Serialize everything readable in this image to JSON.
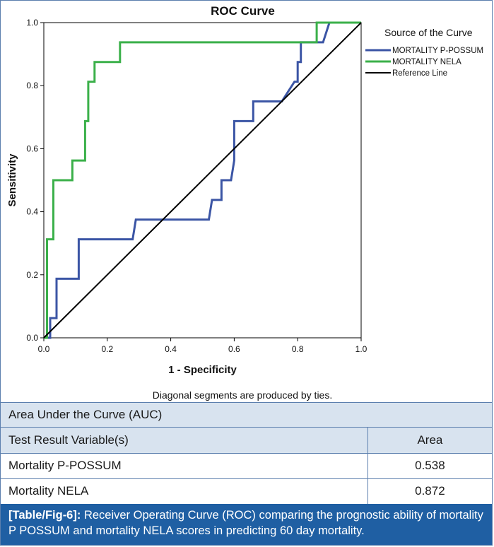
{
  "chart_data": {
    "type": "line",
    "title": "ROC Curve",
    "xlabel": "1 - Specificity",
    "ylabel": "Sensitivity",
    "xlim": [
      0,
      1
    ],
    "ylim": [
      0,
      1
    ],
    "xticks": [
      "0.0",
      "0.2",
      "0.4",
      "0.6",
      "0.8",
      "1.0"
    ],
    "yticks": [
      "0.0",
      "0.2",
      "0.4",
      "0.6",
      "0.8",
      "1.0"
    ],
    "grid": false,
    "legend_title": "Source of the Curve",
    "legend_position": "top-right outside plot",
    "footnote": "Diagonal segments are produced by ties.",
    "series": [
      {
        "name": "MORTALITY P-POSSUM",
        "color": "#3b55a5",
        "points": [
          [
            0,
            0
          ],
          [
            0.02,
            0
          ],
          [
            0.02,
            0.0625
          ],
          [
            0.04,
            0.0625
          ],
          [
            0.04,
            0.1875
          ],
          [
            0.11,
            0.1875
          ],
          [
            0.11,
            0.3125
          ],
          [
            0.28,
            0.3125
          ],
          [
            0.29,
            0.375
          ],
          [
            0.52,
            0.375
          ],
          [
            0.53,
            0.4375
          ],
          [
            0.56,
            0.4375
          ],
          [
            0.56,
            0.5
          ],
          [
            0.59,
            0.5
          ],
          [
            0.6,
            0.5625
          ],
          [
            0.6,
            0.6875
          ],
          [
            0.66,
            0.6875
          ],
          [
            0.66,
            0.75
          ],
          [
            0.75,
            0.75
          ],
          [
            0.79,
            0.8125
          ],
          [
            0.8,
            0.8125
          ],
          [
            0.8,
            0.875
          ],
          [
            0.81,
            0.875
          ],
          [
            0.81,
            0.9375
          ],
          [
            0.88,
            0.9375
          ],
          [
            0.9,
            1.0
          ],
          [
            1.0,
            1.0
          ]
        ]
      },
      {
        "name": "MORTALITY NELA",
        "color": "#3bb04a",
        "points": [
          [
            0,
            0
          ],
          [
            0.01,
            0
          ],
          [
            0.01,
            0.3125
          ],
          [
            0.03,
            0.3125
          ],
          [
            0.03,
            0.5
          ],
          [
            0.09,
            0.5
          ],
          [
            0.09,
            0.5625
          ],
          [
            0.13,
            0.5625
          ],
          [
            0.13,
            0.6875
          ],
          [
            0.14,
            0.6875
          ],
          [
            0.14,
            0.8125
          ],
          [
            0.16,
            0.8125
          ],
          [
            0.16,
            0.875
          ],
          [
            0.24,
            0.875
          ],
          [
            0.24,
            0.9375
          ],
          [
            0.86,
            0.9375
          ],
          [
            0.86,
            1.0
          ],
          [
            1.0,
            1.0
          ]
        ]
      },
      {
        "name": "Reference Line",
        "color": "#000000",
        "points": [
          [
            0,
            0
          ],
          [
            1,
            1
          ]
        ]
      }
    ]
  },
  "auc": {
    "title": "Area Under the Curve (AUC)",
    "headers": [
      "Test Result Variable(s)",
      "Area"
    ],
    "rows": [
      {
        "variable": "Mortality P-POSSUM",
        "area": "0.538"
      },
      {
        "variable": "Mortality NELA",
        "area": "0.872"
      }
    ]
  },
  "caption": {
    "label": "[Table/Fig-6]:",
    "text": " Receiver Operating Curve (ROC) comparing the prognostic ability of mortality P POSSUM and mortality NELA scores in predicting 60 day mortality."
  }
}
